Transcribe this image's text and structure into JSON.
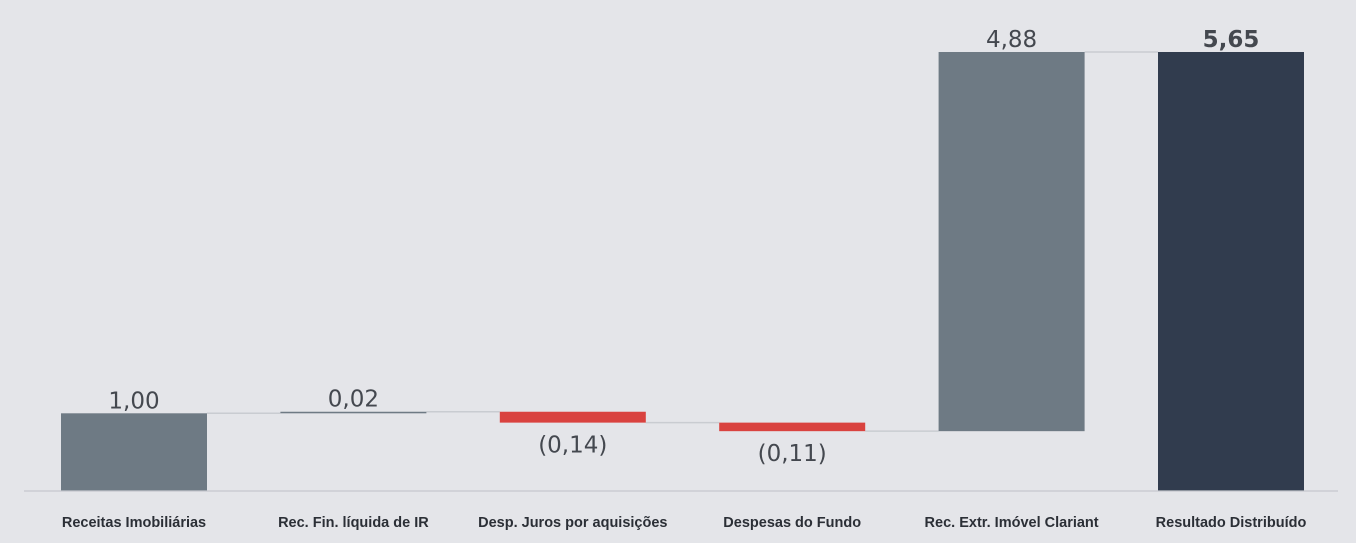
{
  "chart_data": {
    "type": "bar",
    "subtype": "waterfall",
    "title": "",
    "xlabel": "",
    "ylabel": "",
    "categories": [
      "Receitas Imobiliárias",
      "Rec. Fin. líquida de IR",
      "Desp. Juros por aquisições",
      "Despesas do Fundo",
      "Rec. Extr. Imóvel Clariant",
      "Resultado Distribuído"
    ],
    "values": [
      1.0,
      0.02,
      -0.14,
      -0.11,
      4.88,
      5.65
    ],
    "value_labels": [
      "1,00",
      "0,02",
      "(0,14)",
      "(0,11)",
      "4,88",
      "5,65"
    ],
    "is_total": [
      false,
      false,
      false,
      false,
      false,
      true
    ],
    "ylim": [
      0,
      5.65
    ],
    "grid": false,
    "legend": "none",
    "colors": {
      "background": "#e4e5e9",
      "positive": "#6e7a84",
      "negative": "#d9423f",
      "total": "#313c4e",
      "connector": "#c9ccd1",
      "baseline": "#c5c8cd"
    }
  }
}
